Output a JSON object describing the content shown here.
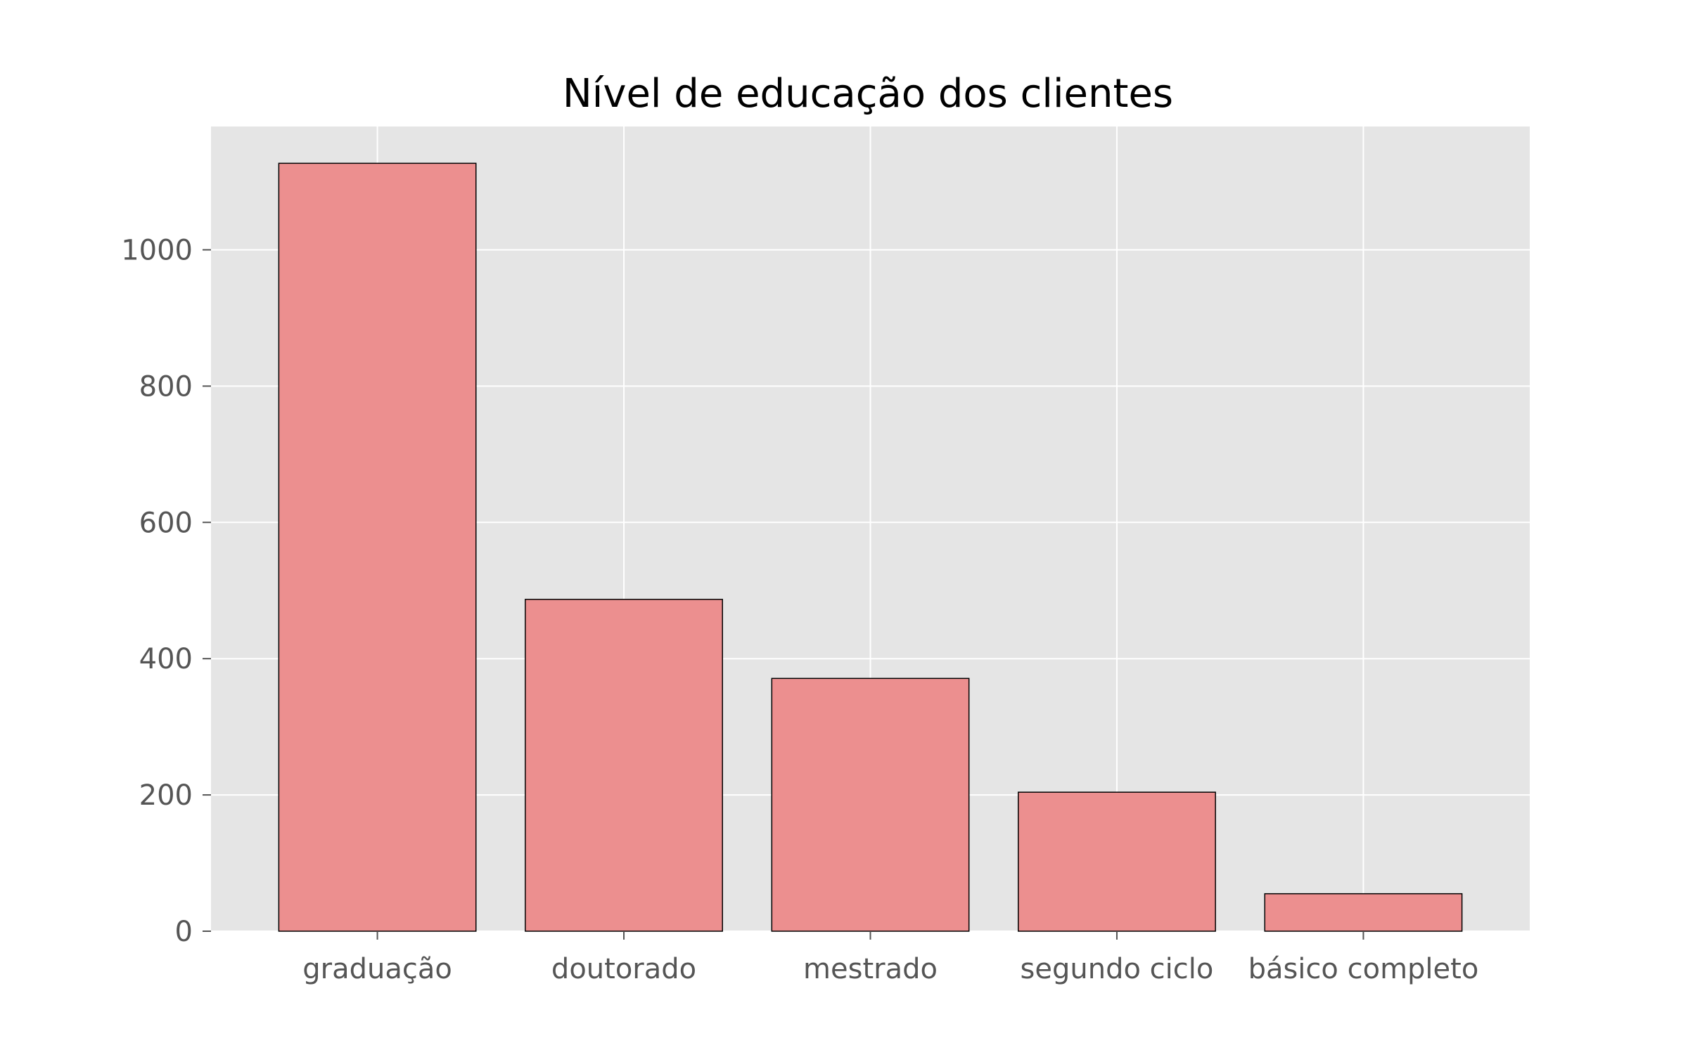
{
  "chart_data": {
    "type": "bar",
    "title": "Nível de educação dos clientes",
    "xlabel": "",
    "ylabel": "",
    "categories": [
      "graduação",
      "doutorado",
      "mestrado",
      "segundo ciclo",
      "básico completo"
    ],
    "values": [
      1127,
      487,
      371,
      204,
      55
    ],
    "ylim": [
      0,
      1181
    ],
    "yticks": [
      0,
      200,
      400,
      600,
      800,
      1000
    ],
    "ytick_labels": [
      "0",
      "200",
      "400",
      "600",
      "800",
      "1000"
    ],
    "grid": true,
    "legend": false,
    "colors": {
      "bar_fill": "#ec8f8f",
      "bar_edge": "#000000",
      "plot_background": "#e5e5e5",
      "grid": "#ffffff",
      "tick_label": "#555555",
      "title": "#000000"
    }
  }
}
